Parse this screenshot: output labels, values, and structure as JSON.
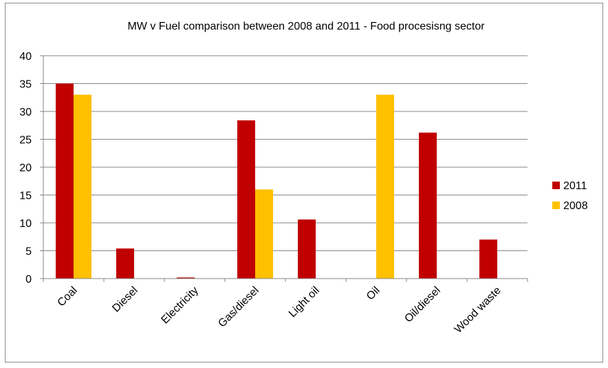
{
  "chart_data": {
    "type": "bar",
    "title": "MW v Fuel comparison between 2008 and 2011 - Food procesisng sector",
    "xlabel": "",
    "ylabel": "",
    "categories": [
      "Coal",
      "Diesel",
      "Electricity",
      "Gas/diesel",
      "Light oil",
      "Oil",
      "Oil/diesel",
      "Wood waste"
    ],
    "series": [
      {
        "name": "2011",
        "color": "#C00000",
        "values": [
          35,
          5.4,
          0.2,
          28.4,
          10.6,
          0,
          26.2,
          7
        ]
      },
      {
        "name": "2008",
        "color": "#FFC000",
        "values": [
          33,
          0,
          0,
          16,
          0,
          33,
          0,
          0
        ]
      }
    ],
    "ylim": [
      0,
      40
    ],
    "yticks": [
      0,
      5,
      10,
      15,
      20,
      25,
      30,
      35,
      40
    ],
    "grid": true,
    "legend_position": "right"
  }
}
